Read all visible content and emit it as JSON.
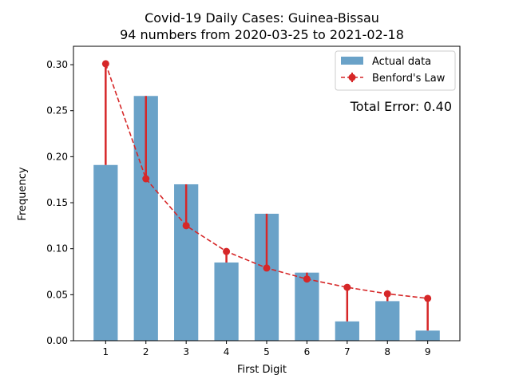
{
  "chart_data": {
    "type": "bar",
    "title": "Covid-19 Daily Cases: Guinea-Bissau",
    "subtitle": "94 numbers from 2020-03-25 to 2021-02-18",
    "xlabel": "First Digit",
    "ylabel": "Frequency",
    "categories": [
      "1",
      "2",
      "3",
      "4",
      "5",
      "6",
      "7",
      "8",
      "9"
    ],
    "ylim": [
      0,
      0.32
    ],
    "yticks": [
      "0.00",
      "0.05",
      "0.10",
      "0.15",
      "0.20",
      "0.25",
      "0.30"
    ],
    "series": [
      {
        "name": "Actual data",
        "type": "bar",
        "color": "#6aa2c8",
        "values": [
          0.191,
          0.266,
          0.17,
          0.085,
          0.138,
          0.074,
          0.021,
          0.043,
          0.011
        ]
      },
      {
        "name": "Benford's Law",
        "type": "line",
        "color": "#d62728",
        "values": [
          0.301,
          0.176,
          0.125,
          0.097,
          0.079,
          0.067,
          0.058,
          0.051,
          0.046
        ]
      }
    ],
    "annotation": "Total Error: 0.40",
    "annotation_color": "#d62728",
    "legend_position": "top-right",
    "grid": false
  }
}
